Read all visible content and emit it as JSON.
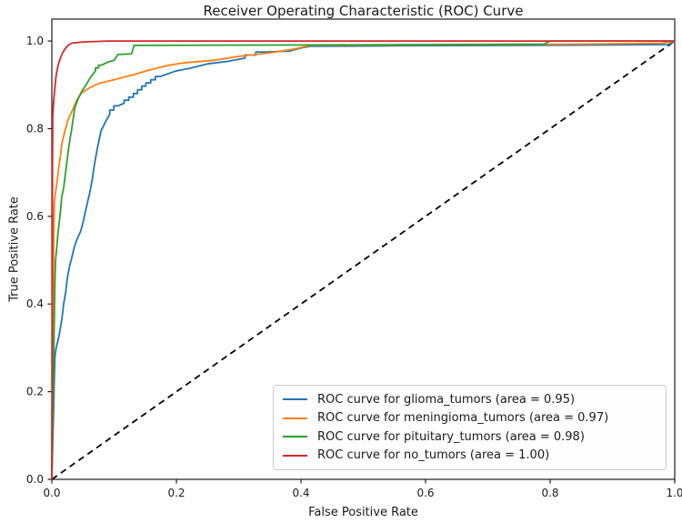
{
  "figure": {
    "title": "Receiver Operating Characteristic (ROC) Curve",
    "xlabel": "False Positive Rate",
    "ylabel": "True Positive Rate"
  },
  "chart_data": {
    "type": "line",
    "title": "Receiver Operating Characteristic (ROC) Curve",
    "xlabel": "False Positive Rate",
    "ylabel": "True Positive Rate",
    "xlim": [
      0.0,
      1.0
    ],
    "ylim": [
      0.0,
      1.05
    ],
    "xticks": [
      0.0,
      0.2,
      0.4,
      0.6,
      0.8,
      1.0
    ],
    "yticks": [
      0.0,
      0.2,
      0.4,
      0.6,
      0.8,
      1.0
    ],
    "grid": false,
    "legend_position": "lower right",
    "series": [
      {
        "name": "ROC curve for glioma_tumors (area = 0.95)",
        "class": "glioma_tumors",
        "auc": 0.95,
        "color": "#1f77b4",
        "points": [
          [
            0,
            0
          ],
          [
            0.003,
            0.17
          ],
          [
            0.004,
            0.225
          ],
          [
            0.005,
            0.28
          ],
          [
            0.007,
            0.3
          ],
          [
            0.012,
            0.33
          ],
          [
            0.016,
            0.365
          ],
          [
            0.019,
            0.4
          ],
          [
            0.022,
            0.425
          ],
          [
            0.025,
            0.46
          ],
          [
            0.029,
            0.49
          ],
          [
            0.032,
            0.505
          ],
          [
            0.036,
            0.53
          ],
          [
            0.041,
            0.55
          ],
          [
            0.046,
            0.565
          ],
          [
            0.049,
            0.58
          ],
          [
            0.053,
            0.605
          ],
          [
            0.057,
            0.63
          ],
          [
            0.061,
            0.655
          ],
          [
            0.065,
            0.685
          ],
          [
            0.068,
            0.715
          ],
          [
            0.073,
            0.755
          ],
          [
            0.079,
            0.795
          ],
          [
            0.086,
            0.815
          ],
          [
            0.093,
            0.833
          ],
          [
            0.106,
            0.852
          ],
          [
            0.116,
            0.858
          ],
          [
            0.131,
            0.872
          ],
          [
            0.151,
            0.897
          ],
          [
            0.174,
            0.919
          ],
          [
            0.198,
            0.931
          ],
          [
            0.222,
            0.938
          ],
          [
            0.25,
            0.948
          ],
          [
            0.28,
            0.953
          ],
          [
            0.31,
            0.961
          ],
          [
            0.345,
            0.975
          ],
          [
            0.381,
            0.977
          ],
          [
            0.4,
            0.984
          ],
          [
            0.415,
            0.988
          ],
          [
            0.55,
            0.989
          ],
          [
            0.75,
            0.99
          ],
          [
            0.99,
            0.992
          ],
          [
            1,
            1
          ]
        ]
      },
      {
        "name": "ROC curve for meningioma_tumors (area = 0.97)",
        "class": "meningioma_tumors",
        "auc": 0.97,
        "color": "#ff7f0e",
        "points": [
          [
            0,
            0
          ],
          [
            0.003,
            0.55
          ],
          [
            0.004,
            0.63
          ],
          [
            0.006,
            0.655
          ],
          [
            0.008,
            0.675
          ],
          [
            0.01,
            0.7
          ],
          [
            0.012,
            0.72
          ],
          [
            0.014,
            0.74
          ],
          [
            0.016,
            0.765
          ],
          [
            0.021,
            0.795
          ],
          [
            0.026,
            0.82
          ],
          [
            0.033,
            0.842
          ],
          [
            0.04,
            0.865
          ],
          [
            0.048,
            0.882
          ],
          [
            0.06,
            0.893
          ],
          [
            0.075,
            0.903
          ],
          [
            0.104,
            0.913
          ],
          [
            0.133,
            0.924
          ],
          [
            0.157,
            0.934
          ],
          [
            0.185,
            0.944
          ],
          [
            0.21,
            0.95
          ],
          [
            0.26,
            0.956
          ],
          [
            0.3,
            0.965
          ],
          [
            0.35,
            0.973
          ],
          [
            0.39,
            0.982
          ],
          [
            0.415,
            0.99
          ],
          [
            0.6,
            0.991
          ],
          [
            0.85,
            0.993
          ],
          [
            0.98,
            0.995
          ],
          [
            1,
            1
          ]
        ]
      },
      {
        "name": "ROC curve for pituitary_tumors (area = 0.98)",
        "class": "pituitary_tumors",
        "auc": 0.98,
        "color": "#2ca02c",
        "points": [
          [
            0,
            0
          ],
          [
            0.004,
            0.36
          ],
          [
            0.005,
            0.45
          ],
          [
            0.006,
            0.5
          ],
          [
            0.008,
            0.53
          ],
          [
            0.01,
            0.565
          ],
          [
            0.013,
            0.6
          ],
          [
            0.016,
            0.645
          ],
          [
            0.019,
            0.665
          ],
          [
            0.022,
            0.7
          ],
          [
            0.026,
            0.745
          ],
          [
            0.029,
            0.775
          ],
          [
            0.032,
            0.8
          ],
          [
            0.037,
            0.848
          ],
          [
            0.042,
            0.868
          ],
          [
            0.048,
            0.885
          ],
          [
            0.055,
            0.9
          ],
          [
            0.062,
            0.917
          ],
          [
            0.07,
            0.932
          ],
          [
            0.08,
            0.945
          ],
          [
            0.09,
            0.952
          ],
          [
            0.1,
            0.956
          ],
          [
            0.106,
            0.969
          ],
          [
            0.128,
            0.971
          ],
          [
            0.132,
            0.99
          ],
          [
            0.45,
            0.991
          ],
          [
            0.79,
            0.993
          ],
          [
            0.8,
            1.0
          ],
          [
            1,
            1
          ]
        ]
      },
      {
        "name": "ROC curve for no_tumors (area = 1.00)",
        "class": "no_tumors",
        "auc": 1.0,
        "color": "#d62728",
        "points": [
          [
            0,
            0
          ],
          [
            0.001,
            0.7
          ],
          [
            0.0015,
            0.83
          ],
          [
            0.003,
            0.865
          ],
          [
            0.005,
            0.895
          ],
          [
            0.007,
            0.922
          ],
          [
            0.01,
            0.945
          ],
          [
            0.013,
            0.958
          ],
          [
            0.017,
            0.972
          ],
          [
            0.021,
            0.982
          ],
          [
            0.026,
            0.99
          ],
          [
            0.032,
            0.995
          ],
          [
            0.05,
            0.998
          ],
          [
            0.09,
            1.0
          ],
          [
            1,
            1
          ]
        ]
      }
    ],
    "reference_line": {
      "name": "chance-diagonal",
      "style": "dashed",
      "color": "#000000",
      "points": [
        [
          0,
          0
        ],
        [
          1,
          1
        ]
      ]
    }
  },
  "style_colors": {
    "axis": "#1a1a1a",
    "legend_border": "#cbcbcb",
    "legend_bg": "#fefefe"
  }
}
